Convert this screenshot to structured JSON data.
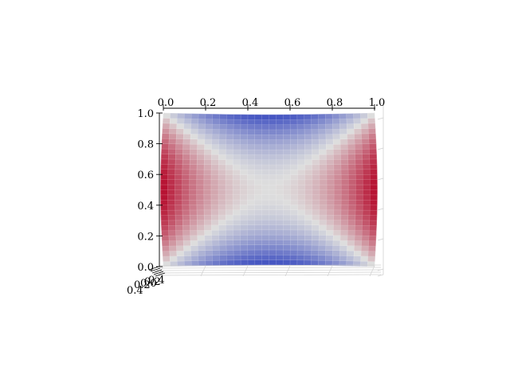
{
  "chart_data": {
    "type": "surface3d",
    "title": "",
    "xlabel": "",
    "ylabel": "",
    "zlabel": "",
    "colormap": "coolwarm",
    "colors": {
      "low": "#3b4cc0",
      "mid": "#dddddd",
      "high": "#b40426"
    },
    "x_ticks": [
      "0.0",
      "0.2",
      "0.4",
      "0.6",
      "0.8",
      "1.0"
    ],
    "y_ticks": [
      "0.0",
      "0.2",
      "0.4",
      "0.6",
      "0.8",
      "1.0"
    ],
    "z_ticks": [
      "0.4",
      "0.2",
      "0.0",
      "0.2",
      "0.4"
    ],
    "xlim": [
      0,
      1
    ],
    "ylim": [
      0,
      1
    ],
    "zlim": [
      -0.4,
      0.4
    ],
    "surface_description": "saddle-like surface z ≈ (x - 0.5)^2 - (y - 0.5)^2 on unit square; highest at left/right middle edges, lowest at top/bottom middle edges",
    "grid": true
  }
}
